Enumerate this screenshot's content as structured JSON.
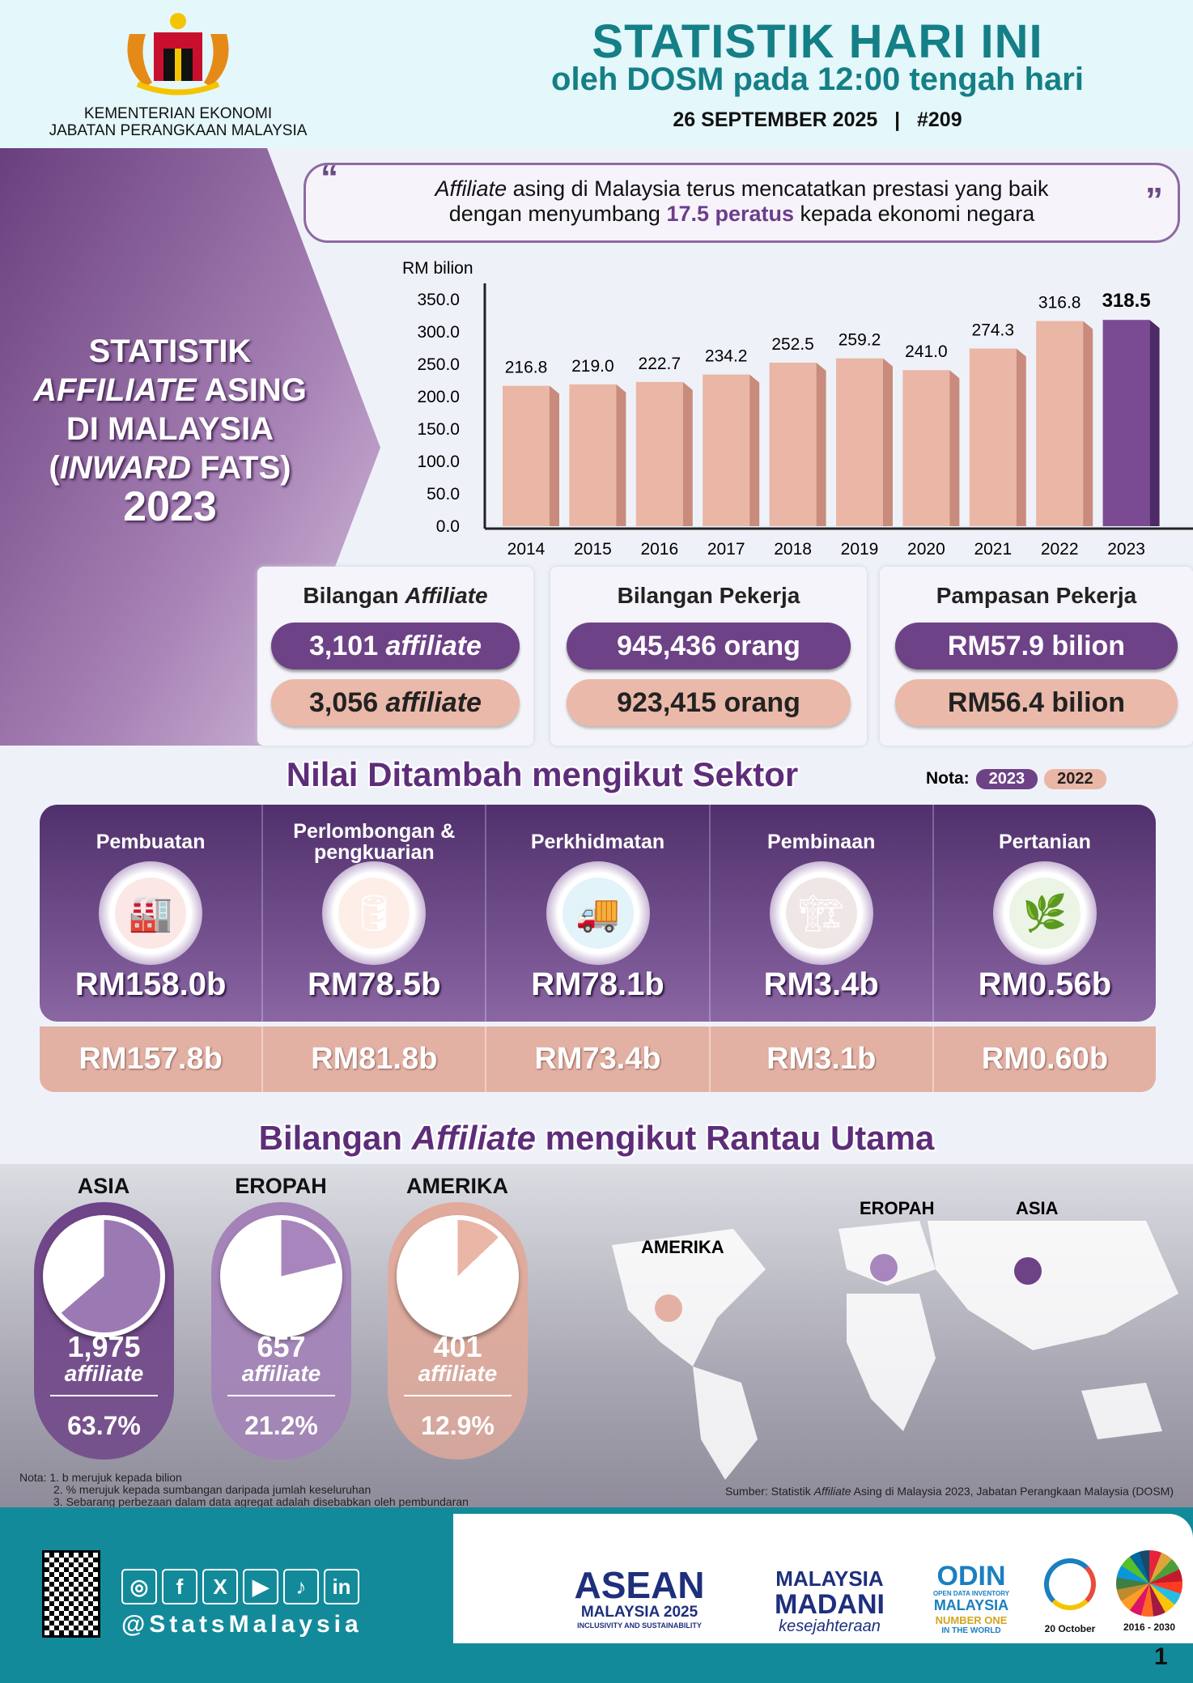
{
  "header": {
    "ministry_line1": "KEMENTERIAN EKONOMI",
    "ministry_line2": "JABATAN PERANGKAAN MALAYSIA",
    "title": "STATISTIK HARI INI",
    "subtitle": "oleh DOSM pada 12:00 tengah hari",
    "date": "26 SEPTEMBER 2025",
    "separator": "|",
    "issue": "#209"
  },
  "left_title": {
    "line1": "STATISTIK",
    "line2_italic": "AFFILIATE",
    "line2_rest": " ASING",
    "line3": "DI MALAYSIA",
    "line4_open": "(",
    "line4_italic": "INWARD",
    "line4_rest": " FATS)",
    "year": "2023"
  },
  "quote": {
    "open": "“",
    "italic": "Affiliate",
    "text1": " asing di Malaysia terus mencatatkan prestasi yang baik",
    "text2": "dengan menyumbang ",
    "highlight": "17.5 peratus",
    "text3": " kepada ekonomi negara",
    "close": "”"
  },
  "chart_data": {
    "type": "bar",
    "ylabel": "RM bilion",
    "ylim": [
      0,
      350
    ],
    "yticks": [
      "0.0",
      "50.0",
      "100.0",
      "150.0",
      "200.0",
      "250.0",
      "300.0",
      "350.0"
    ],
    "categories": [
      "2014",
      "2015",
      "2016",
      "2017",
      "2018",
      "2019",
      "2020",
      "2021",
      "2022",
      "2023"
    ],
    "values": [
      216.8,
      219.0,
      222.7,
      234.2,
      252.5,
      259.2,
      241.0,
      274.3,
      316.8,
      318.5
    ],
    "labels": [
      "216.8",
      "219.0",
      "222.7",
      "234.2",
      "252.5",
      "259.2",
      "241.0",
      "274.3",
      "316.8",
      "318.5"
    ],
    "colors": {
      "default": "#eab6a6",
      "highlight": "#7a4a93"
    }
  },
  "cards": [
    {
      "title_italic": "Affiliate",
      "title_pre": "Bilangan ",
      "v2023_num": "3,101 ",
      "v2023_unit": "affiliate",
      "v2022_num": "3,056 ",
      "v2022_unit": "affiliate"
    },
    {
      "title_pre": "Bilangan Pekerja",
      "v2023": "945,436 orang",
      "v2022": "923,415 orang"
    },
    {
      "title_pre": "Pampasan Pekerja",
      "v2023": "RM57.9 bilion",
      "v2022": "RM56.4 bilion"
    }
  ],
  "sector_section": {
    "title": "Nilai Ditambah mengikut Sektor",
    "nota": "Nota:",
    "legend_2023": "2023",
    "legend_2022": "2022",
    "sectors": [
      {
        "label": "Pembuatan",
        "icon": "factory-icon",
        "glyph": "🏭",
        "v2023": "RM158.0b",
        "v2022": "RM157.8b"
      },
      {
        "label": "Perlombongan & pengkuarian",
        "icon": "oil-rig-icon",
        "glyph": "🛢",
        "v2023": "RM78.5b",
        "v2022": "RM81.8b"
      },
      {
        "label": "Perkhidmatan",
        "icon": "services-icon",
        "glyph": "🚚",
        "v2023": "RM78.1b",
        "v2022": "RM73.4b"
      },
      {
        "label": "Pembinaan",
        "icon": "crane-icon",
        "glyph": "🏗",
        "v2023": "RM3.4b",
        "v2022": "RM3.1b"
      },
      {
        "label": "Pertanian",
        "icon": "agriculture-icon",
        "glyph": "🌿",
        "v2023": "RM0.56b",
        "v2022": "RM0.60b"
      }
    ]
  },
  "region_section": {
    "title_pre": "Bilangan ",
    "title_italic": "Affiliate",
    "title_post": " mengikut Rantau Utama",
    "regions": [
      {
        "name": "ASIA",
        "count": "1,975",
        "unit": "affiliate",
        "pct": "63.7%",
        "share": 63.7,
        "color": "#6e4287",
        "fill": "#9b79b2"
      },
      {
        "name": "EROPAH",
        "count": "657",
        "unit": "affiliate",
        "pct": "21.2%",
        "share": 21.2,
        "color": "#a381b8",
        "fill": "#a886bd"
      },
      {
        "name": "AMERIKA",
        "count": "401",
        "unit": "affiliate",
        "pct": "12.9%",
        "share": 12.9,
        "color": "#e1aa9b",
        "fill": "#eab6a6"
      }
    ],
    "map_labels": {
      "amerika": "AMERIKA",
      "eropah": "EROPAH",
      "asia": "ASIA"
    }
  },
  "notes": {
    "line1": "Nota: 1. b merujuk kepada bilion",
    "line2": "2. % merujuk kepada sumbangan daripada jumlah keseluruhan",
    "line3": "3. Sebarang perbezaan dalam data agregat adalah disebabkan oleh pembundaran",
    "source_pre": "Sumber: Statistik ",
    "source_italic": "Affiliate",
    "source_post": " Asing di Malaysia 2023, Jabatan Perangkaan Malaysia (DOSM)"
  },
  "footer": {
    "handle": "@StatsMalaysia",
    "social": [
      {
        "icon": "instagram-icon",
        "glyph": "◎"
      },
      {
        "icon": "facebook-icon",
        "glyph": "f"
      },
      {
        "icon": "x-icon",
        "glyph": "X"
      },
      {
        "icon": "youtube-icon",
        "glyph": "▶"
      },
      {
        "icon": "tiktok-icon",
        "glyph": "♪"
      },
      {
        "icon": "linkedin-icon",
        "glyph": "in"
      }
    ],
    "asean": "ASEAN",
    "asean_sub": "MALAYSIA 2025",
    "asean_tag": "INCLUSIVITY AND SUSTAINABILITY",
    "madani1": "MALAYSIA",
    "madani2": "MADANI",
    "madani_tag": "kesejahteraan",
    "odin": "ODIN",
    "odin_sub": "OPEN DATA INVENTORY",
    "odin_l2": "MALAYSIA",
    "odin_l3": "NUMBER ONE",
    "odin_l4": "IN THE WORLD",
    "wsd_date": "20 October",
    "sdg_years": "2016 - 2030",
    "page": "1"
  }
}
